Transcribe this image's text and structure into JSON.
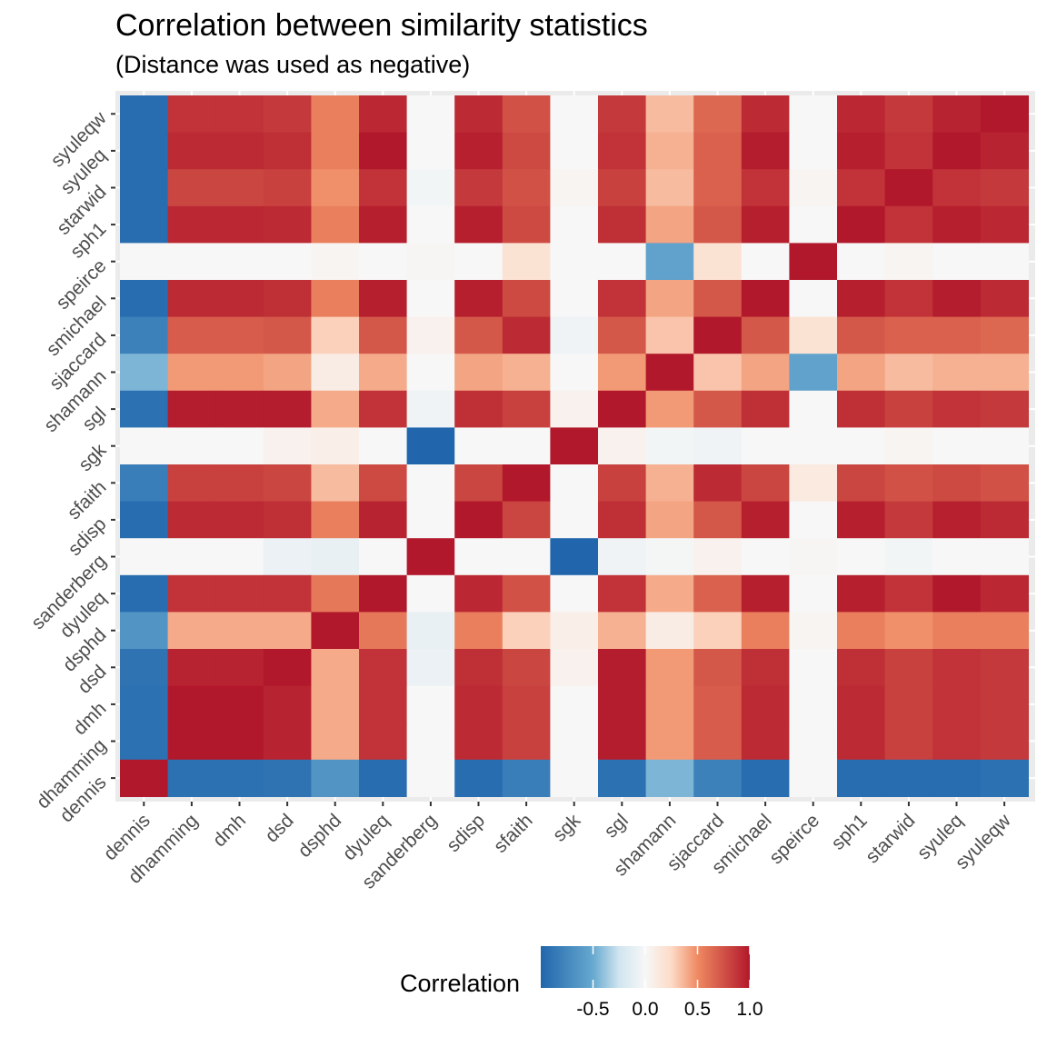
{
  "chart_data": {
    "type": "heatmap",
    "title": "Correlation between similarity statistics",
    "subtitle": "(Distance was used as negative)",
    "x_categories": [
      "dennis",
      "dhamming",
      "dmh",
      "dsd",
      "dsphd",
      "dyuleq",
      "sanderberg",
      "sdisp",
      "sfaith",
      "sgk",
      "sgl",
      "shamann",
      "sjaccard",
      "smichael",
      "speirce",
      "sph1",
      "starwid",
      "syuleq",
      "syuleqw"
    ],
    "y_categories_top_to_bottom": [
      "syuleqw",
      "syuleq",
      "starwid",
      "sph1",
      "speirce",
      "smichael",
      "sjaccard",
      "shamann",
      "sgl",
      "sgk",
      "sfaith",
      "sdisp",
      "sanderberg",
      "dyuleq",
      "dsphd",
      "dsd",
      "dmh",
      "dhamming",
      "dennis"
    ],
    "values_top_to_bottom": [
      [
        -0.95,
        0.88,
        0.88,
        0.85,
        0.55,
        0.93,
        0.0,
        0.92,
        0.75,
        0.0,
        0.85,
        0.35,
        0.65,
        0.92,
        0.0,
        0.93,
        0.85,
        0.95,
        1.0
      ],
      [
        -0.95,
        0.92,
        0.92,
        0.9,
        0.55,
        1.0,
        0.0,
        0.96,
        0.78,
        0.0,
        0.88,
        0.38,
        0.68,
        0.98,
        0.0,
        0.97,
        0.88,
        1.0,
        0.95
      ],
      [
        -0.95,
        0.8,
        0.8,
        0.82,
        0.48,
        0.88,
        -0.03,
        0.85,
        0.75,
        0.03,
        0.82,
        0.35,
        0.68,
        0.88,
        0.03,
        0.88,
        1.0,
        0.88,
        0.85
      ],
      [
        -0.95,
        0.93,
        0.93,
        0.92,
        0.55,
        0.97,
        0.0,
        0.97,
        0.78,
        0.0,
        0.9,
        0.42,
        0.72,
        0.97,
        0.0,
        1.0,
        0.88,
        0.97,
        0.93
      ],
      [
        0.0,
        0.0,
        0.0,
        0.0,
        0.03,
        0.0,
        0.02,
        0.0,
        0.18,
        0.0,
        0.0,
        -0.55,
        0.18,
        0.0,
        1.0,
        0.0,
        0.03,
        0.0,
        0.0
      ],
      [
        -0.95,
        0.92,
        0.92,
        0.9,
        0.55,
        0.97,
        0.0,
        0.97,
        0.78,
        0.0,
        0.88,
        0.42,
        0.72,
        1.0,
        0.0,
        0.97,
        0.88,
        0.98,
        0.92
      ],
      [
        -0.8,
        0.7,
        0.7,
        0.72,
        0.28,
        0.72,
        0.05,
        0.72,
        0.92,
        -0.05,
        0.72,
        0.32,
        1.0,
        0.72,
        0.18,
        0.72,
        0.68,
        0.68,
        0.65
      ],
      [
        -0.45,
        0.45,
        0.45,
        0.42,
        0.1,
        0.4,
        0.0,
        0.42,
        0.38,
        0.0,
        0.45,
        1.0,
        0.32,
        0.42,
        -0.55,
        0.42,
        0.35,
        0.38,
        0.38
      ],
      [
        -0.92,
        0.98,
        0.98,
        0.98,
        0.4,
        0.88,
        -0.05,
        0.9,
        0.82,
        0.05,
        1.0,
        0.45,
        0.72,
        0.9,
        0.0,
        0.9,
        0.82,
        0.88,
        0.85
      ],
      [
        0.0,
        0.0,
        0.0,
        0.05,
        0.08,
        0.0,
        -1.0,
        0.0,
        0.0,
        1.0,
        0.05,
        -0.03,
        -0.05,
        0.0,
        0.0,
        0.0,
        0.03,
        0.0,
        0.0
      ],
      [
        -0.82,
        0.82,
        0.82,
        0.8,
        0.35,
        0.78,
        0.0,
        0.8,
        1.0,
        0.0,
        0.82,
        0.38,
        0.92,
        0.8,
        0.12,
        0.8,
        0.75,
        0.78,
        0.75
      ],
      [
        -0.95,
        0.92,
        0.92,
        0.9,
        0.55,
        0.95,
        0.0,
        1.0,
        0.8,
        0.0,
        0.9,
        0.42,
        0.72,
        0.97,
        0.0,
        0.97,
        0.85,
        0.96,
        0.92
      ],
      [
        0.0,
        0.0,
        0.0,
        -0.08,
        -0.1,
        0.0,
        1.0,
        0.0,
        0.0,
        -1.0,
        -0.05,
        -0.02,
        0.05,
        0.0,
        0.02,
        0.0,
        -0.03,
        0.0,
        0.0
      ],
      [
        -0.95,
        0.88,
        0.88,
        0.88,
        0.58,
        1.0,
        0.0,
        0.93,
        0.75,
        0.0,
        0.88,
        0.4,
        0.68,
        0.97,
        0.0,
        0.97,
        0.88,
        1.0,
        0.93
      ],
      [
        -0.65,
        0.4,
        0.4,
        0.4,
        1.0,
        0.58,
        -0.1,
        0.55,
        0.28,
        0.08,
        0.38,
        0.1,
        0.28,
        0.55,
        0.03,
        0.55,
        0.48,
        0.55,
        0.55
      ],
      [
        -0.9,
        0.95,
        0.95,
        1.0,
        0.4,
        0.88,
        -0.08,
        0.9,
        0.8,
        0.05,
        0.98,
        0.45,
        0.72,
        0.9,
        0.0,
        0.9,
        0.82,
        0.88,
        0.85
      ],
      [
        -0.92,
        1.0,
        1.0,
        0.95,
        0.4,
        0.88,
        0.0,
        0.92,
        0.82,
        0.0,
        0.98,
        0.45,
        0.7,
        0.92,
        0.0,
        0.92,
        0.82,
        0.88,
        0.85
      ],
      [
        -0.92,
        1.0,
        1.0,
        0.95,
        0.4,
        0.88,
        0.0,
        0.92,
        0.82,
        0.0,
        0.98,
        0.45,
        0.7,
        0.92,
        0.0,
        0.92,
        0.82,
        0.88,
        0.85
      ],
      [
        1.0,
        -0.92,
        -0.92,
        -0.9,
        -0.65,
        -0.95,
        0.0,
        -0.95,
        -0.82,
        0.0,
        -0.92,
        -0.45,
        -0.8,
        -0.95,
        0.0,
        -0.95,
        -0.95,
        -0.95,
        -0.92
      ]
    ],
    "color_scale": {
      "stops": [
        {
          "value": -1.0,
          "color": "#2166ac"
        },
        {
          "value": -0.5,
          "color": "#67a9cf"
        },
        {
          "value": -0.25,
          "color": "#d1e5f0"
        },
        {
          "value": 0.0,
          "color": "#f7f7f7"
        },
        {
          "value": 0.25,
          "color": "#fddbc7"
        },
        {
          "value": 0.5,
          "color": "#ef8a62"
        },
        {
          "value": 1.0,
          "color": "#b2182b"
        }
      ]
    },
    "legend": {
      "title": "Correlation",
      "placement": "bottom",
      "ticks": [
        -0.5,
        0.0,
        0.5,
        1.0
      ],
      "tick_labels": [
        "-0.5",
        "0.0",
        "0.5",
        "1.0"
      ],
      "range": [
        -1.0,
        1.0
      ]
    },
    "panel_background": "#ebebeb",
    "gridlines": true
  }
}
